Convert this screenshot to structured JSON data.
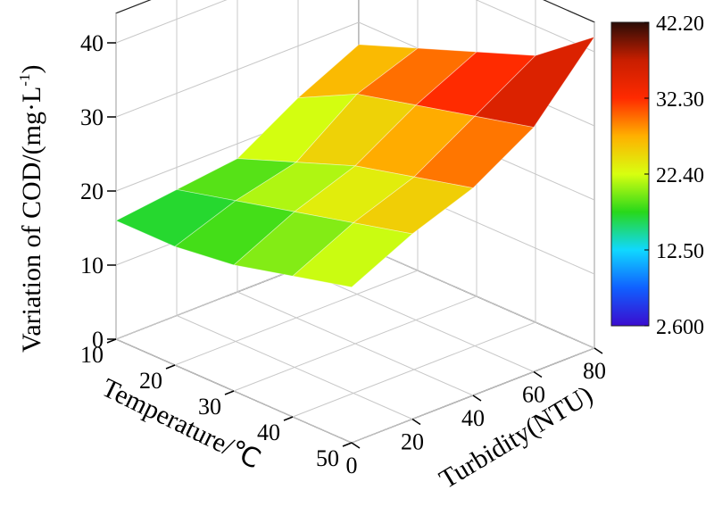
{
  "chart_data": {
    "type": "surface3d",
    "zlabel": "Variation of COD/(mg·L",
    "zlabel_sup": "-1",
    "zlabel_close": ")",
    "xlabel": "Temperature/℃",
    "ylabel": "Turbidity(NTU)",
    "x_ticks": [
      "10",
      "20",
      "30",
      "40",
      "50"
    ],
    "y_ticks": [
      "0",
      "20",
      "40",
      "60",
      "80"
    ],
    "z_ticks": [
      "0",
      "10",
      "20",
      "30",
      "40"
    ],
    "xlim": [
      10,
      50
    ],
    "ylim": [
      0,
      80
    ],
    "zlim": [
      0,
      44
    ],
    "colorbar_ticks": [
      "42.20",
      "32.30",
      "22.40",
      "12.50",
      "2.600"
    ],
    "colorbar_range": [
      2.6,
      42.2
    ],
    "colormap": [
      "#3a0ccf",
      "#1060ff",
      "#10d8ff",
      "#28d81a",
      "#d8ff10",
      "#ffb000",
      "#ff2a00",
      "#c81e00",
      "#2a0c06"
    ],
    "x": [
      10,
      20,
      30,
      40,
      50
    ],
    "y": [
      0,
      20,
      40,
      60,
      80
    ],
    "z": [
      [
        16,
        16,
        17,
        19,
        21
      ],
      [
        17,
        19,
        21,
        23,
        25
      ],
      [
        18,
        21,
        24,
        26,
        28
      ],
      [
        23,
        27,
        29,
        31,
        33
      ],
      [
        27,
        30,
        33,
        36,
        42
      ]
    ]
  }
}
